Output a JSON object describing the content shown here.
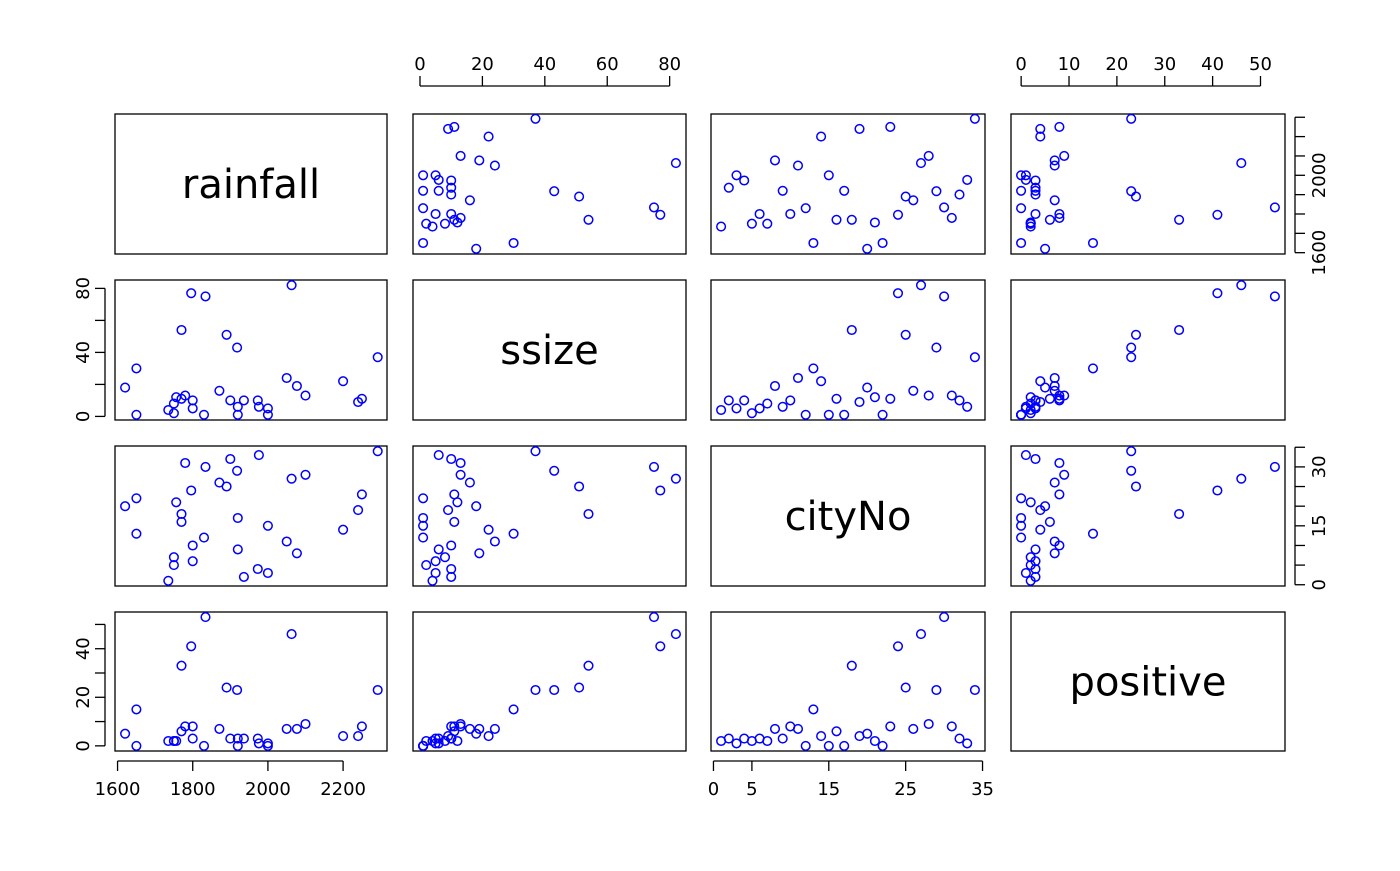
{
  "chart_data": {
    "type": "scatter",
    "variables": [
      "rainfall",
      "ssize",
      "cityNo",
      "positive"
    ],
    "ranges": {
      "rainfall": [
        1620,
        2290
      ],
      "ssize": [
        1,
        82
      ],
      "cityNo": [
        1,
        34
      ],
      "positive": [
        0,
        53
      ]
    },
    "ticks": {
      "rainfall": [
        1600,
        1800,
        2000,
        2200
      ],
      "ssize": [
        0,
        20,
        40,
        60,
        80
      ],
      "cityNo": [
        0,
        5,
        15,
        25,
        35
      ],
      "positive": [
        0,
        10,
        20,
        30,
        40,
        50
      ]
    },
    "tick_labels": {
      "rainfall": [
        "1600",
        "1800",
        "2000",
        "2200"
      ],
      "ssize": [
        "0",
        "20",
        "40",
        "60",
        "80"
      ],
      "cityNo": [
        "0",
        "5",
        "15",
        "25",
        "35"
      ],
      "positive": [
        "0",
        "10",
        "20",
        "30",
        "40",
        "50"
      ]
    },
    "ticks_left": {
      "ssize": [
        0,
        20,
        40,
        60,
        80
      ],
      "positive": [
        0,
        10,
        20,
        30,
        40,
        50
      ]
    },
    "labels_left": {
      "ssize": [
        "0",
        "40",
        "80"
      ],
      "positive": [
        "0",
        "20",
        "40"
      ]
    },
    "ticks_right": {
      "rainfall": [
        1600,
        1700,
        1800,
        1900,
        2000,
        2100,
        2200,
        2300
      ],
      "cityNo": [
        0,
        5,
        10,
        15,
        20,
        25,
        30,
        35
      ]
    },
    "labels_right": {
      "rainfall": [
        "1600",
        "2000"
      ],
      "cityNo": [
        "0",
        "15",
        "30"
      ]
    },
    "color": "#0000ff",
    "observations": [
      {
        "rainfall": 1735,
        "ssize": 4,
        "cityNo": 1,
        "positive": 2
      },
      {
        "rainfall": 1936,
        "ssize": 10,
        "cityNo": 2,
        "positive": 3
      },
      {
        "rainfall": 2000,
        "ssize": 5,
        "cityNo": 3,
        "positive": 1
      },
      {
        "rainfall": 1973,
        "ssize": 10,
        "cityNo": 4,
        "positive": 3
      },
      {
        "rainfall": 1750,
        "ssize": 2,
        "cityNo": 5,
        "positive": 2
      },
      {
        "rainfall": 1800,
        "ssize": 5,
        "cityNo": 6,
        "positive": 3
      },
      {
        "rainfall": 1750,
        "ssize": 8,
        "cityNo": 7,
        "positive": 2
      },
      {
        "rainfall": 2077,
        "ssize": 19,
        "cityNo": 8,
        "positive": 7
      },
      {
        "rainfall": 1920,
        "ssize": 6,
        "cityNo": 9,
        "positive": 3
      },
      {
        "rainfall": 1800,
        "ssize": 10,
        "cityNo": 10,
        "positive": 8
      },
      {
        "rainfall": 2050,
        "ssize": 24,
        "cityNo": 11,
        "positive": 7
      },
      {
        "rainfall": 1830,
        "ssize": 1,
        "cityNo": 12,
        "positive": 0
      },
      {
        "rainfall": 1650,
        "ssize": 30,
        "cityNo": 13,
        "positive": 15
      },
      {
        "rainfall": 2200,
        "ssize": 22,
        "cityNo": 14,
        "positive": 4
      },
      {
        "rainfall": 2000,
        "ssize": 1,
        "cityNo": 15,
        "positive": 0
      },
      {
        "rainfall": 1770,
        "ssize": 11,
        "cityNo": 16,
        "positive": 6
      },
      {
        "rainfall": 1920,
        "ssize": 1,
        "cityNo": 17,
        "positive": 0
      },
      {
        "rainfall": 1770,
        "ssize": 54,
        "cityNo": 18,
        "positive": 33
      },
      {
        "rainfall": 2240,
        "ssize": 9,
        "cityNo": 19,
        "positive": 4
      },
      {
        "rainfall": 1620,
        "ssize": 18,
        "cityNo": 20,
        "positive": 5
      },
      {
        "rainfall": 1756,
        "ssize": 12,
        "cityNo": 21,
        "positive": 2
      },
      {
        "rainfall": 1650,
        "ssize": 1,
        "cityNo": 22,
        "positive": 0
      },
      {
        "rainfall": 2250,
        "ssize": 11,
        "cityNo": 23,
        "positive": 8
      },
      {
        "rainfall": 1796,
        "ssize": 77,
        "cityNo": 24,
        "positive": 41
      },
      {
        "rainfall": 1890,
        "ssize": 51,
        "cityNo": 25,
        "positive": 24
      },
      {
        "rainfall": 1871,
        "ssize": 16,
        "cityNo": 26,
        "positive": 7
      },
      {
        "rainfall": 2063,
        "ssize": 82,
        "cityNo": 27,
        "positive": 46
      },
      {
        "rainfall": 2100,
        "ssize": 13,
        "cityNo": 28,
        "positive": 9
      },
      {
        "rainfall": 1918,
        "ssize": 43,
        "cityNo": 29,
        "positive": 23
      },
      {
        "rainfall": 1834,
        "ssize": 75,
        "cityNo": 30,
        "positive": 53
      },
      {
        "rainfall": 1780,
        "ssize": 13,
        "cityNo": 31,
        "positive": 8
      },
      {
        "rainfall": 1900,
        "ssize": 10,
        "cityNo": 32,
        "positive": 3
      },
      {
        "rainfall": 1976,
        "ssize": 6,
        "cityNo": 33,
        "positive": 1
      },
      {
        "rainfall": 2292,
        "ssize": 37,
        "cityNo": 34,
        "positive": 23
      }
    ]
  }
}
